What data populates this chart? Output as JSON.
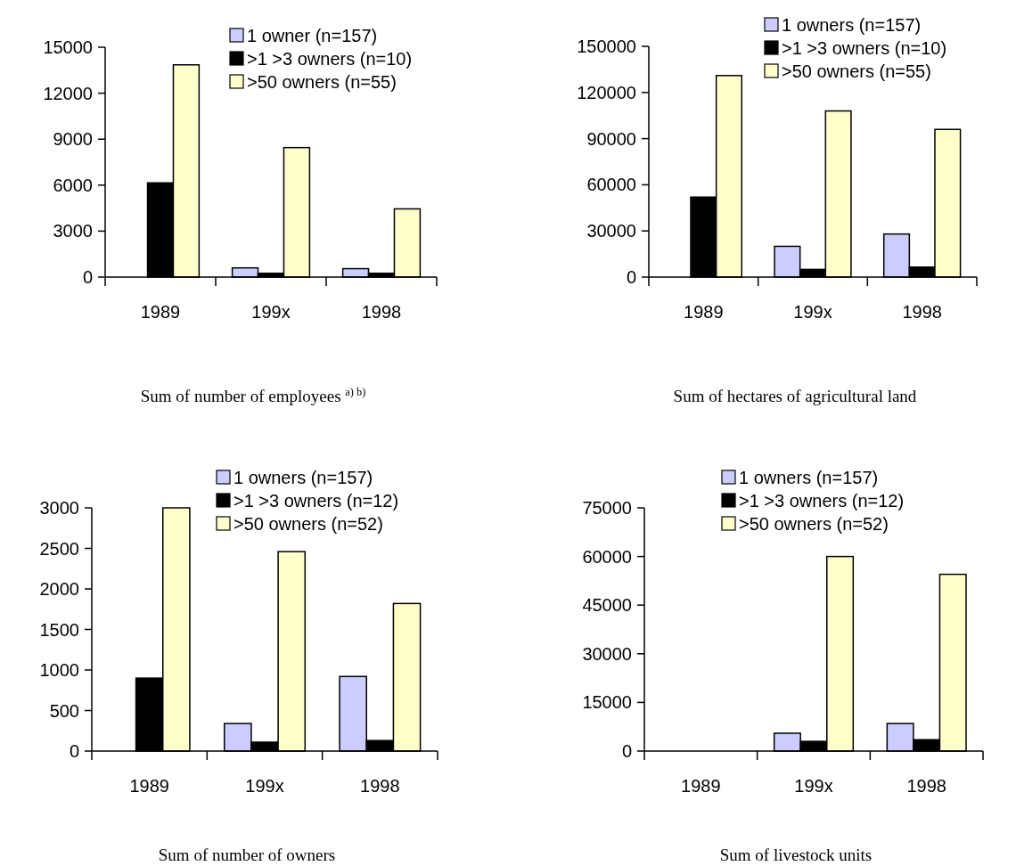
{
  "chart_data": [
    {
      "type": "bar",
      "xlabel": "Sum of number of employees $^{a) b)}$",
      "categories": [
        "1989",
        "199x",
        "1998"
      ],
      "ylim": [
        0,
        15000
      ],
      "yticks": [
        0,
        3000,
        6000,
        9000,
        12000,
        15000
      ],
      "legend": "top right",
      "series": [
        {
          "name": "1 owner (n=157)",
          "color": "#ccccff",
          "values": [
            null,
            600,
            550
          ]
        },
        {
          "name": ">1 >3 owners (n=10)",
          "color": "#000000",
          "values": [
            6150,
            250,
            250
          ]
        },
        {
          "name": ">50 owners (n=55)",
          "color": "#ffffcc",
          "values": [
            13850,
            8450,
            4450
          ]
        }
      ]
    },
    {
      "type": "bar",
      "xlabel": "Sum of hectares of agricultural land",
      "categories": [
        "1989",
        "199x",
        "1998"
      ],
      "ylim": [
        0,
        150000
      ],
      "yticks": [
        0,
        30000,
        60000,
        90000,
        120000,
        150000
      ],
      "legend": "top right",
      "series": [
        {
          "name": "1 owners (n=157)",
          "color": "#ccccff",
          "values": [
            null,
            20000,
            28000
          ]
        },
        {
          "name": ">1 >3 owners (n=10)",
          "color": "#000000",
          "values": [
            52000,
            5000,
            6500
          ]
        },
        {
          "name": ">50 owners (n=55)",
          "color": "#ffffcc",
          "values": [
            131000,
            108000,
            96000
          ]
        }
      ]
    },
    {
      "type": "bar",
      "xlabel": "Sum of number of owners",
      "categories": [
        "1989",
        "199x",
        "1998"
      ],
      "ylim": [
        0,
        3000
      ],
      "yticks": [
        0,
        500,
        1000,
        1500,
        2000,
        2500,
        3000
      ],
      "legend": "top right",
      "series": [
        {
          "name": "1 owners (n=157)",
          "color": "#ccccff",
          "values": [
            null,
            340,
            920
          ]
        },
        {
          "name": ">1 >3 owners (n=12)",
          "color": "#000000",
          "values": [
            900,
            110,
            130
          ]
        },
        {
          "name": ">50 owners (n=52)",
          "color": "#ffffcc",
          "values": [
            3000,
            2460,
            1820
          ]
        }
      ]
    },
    {
      "type": "bar",
      "xlabel": "Sum of livestock units",
      "categories": [
        "1989",
        "199x",
        "1998"
      ],
      "ylim": [
        0,
        75000
      ],
      "yticks": [
        0,
        15000,
        30000,
        45000,
        60000,
        75000
      ],
      "legend": "top right",
      "series": [
        {
          "name": "1 owners (n=157)",
          "color": "#ccccff",
          "values": [
            null,
            5500,
            8500
          ]
        },
        {
          "name": ">1 >3 owners (n=12)",
          "color": "#000000",
          "values": [
            null,
            3000,
            3500
          ]
        },
        {
          "name": ">50 owners (n=52)",
          "color": "#ffffcc",
          "values": [
            null,
            60000,
            54500
          ]
        }
      ]
    }
  ]
}
